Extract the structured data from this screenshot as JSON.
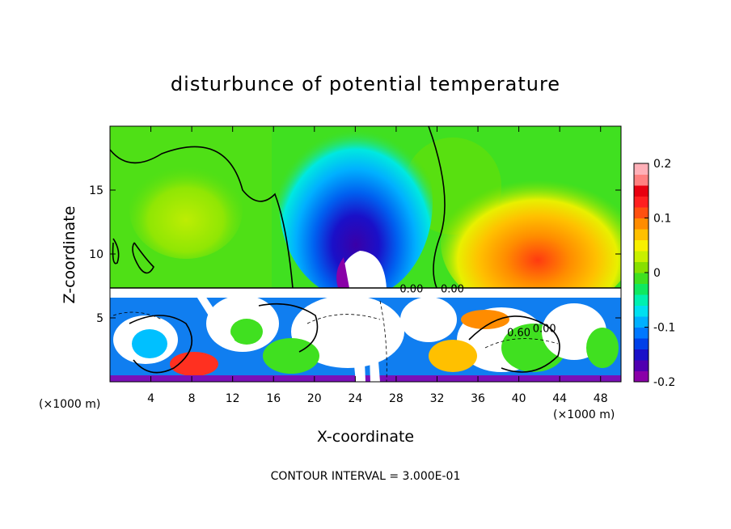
{
  "chart_data": {
    "type": "heatmap",
    "title": "disturbunce of potential temperature",
    "xlabel": "X-coordinate",
    "ylabel": "Z-coordinate",
    "x_unit_left": "(×1000 m)",
    "x_unit_right": "(×1000 m)",
    "footer": "CONTOUR INTERVAL = 3.000E-01",
    "xlim": [
      0,
      50
    ],
    "ylim": [
      0,
      20
    ],
    "x_ticks": [
      {
        "v": 4,
        "label": "4"
      },
      {
        "v": 8,
        "label": "8"
      },
      {
        "v": 12,
        "label": "12"
      },
      {
        "v": 16,
        "label": "16"
      },
      {
        "v": 20,
        "label": "20"
      },
      {
        "v": 24,
        "label": "24"
      },
      {
        "v": 28,
        "label": "28"
      },
      {
        "v": 32,
        "label": "32"
      },
      {
        "v": 36,
        "label": "36"
      },
      {
        "v": 40,
        "label": "40"
      },
      {
        "v": 44,
        "label": "44"
      },
      {
        "v": 48,
        "label": "48"
      }
    ],
    "y_ticks": [
      {
        "v": 5,
        "label": "5"
      },
      {
        "v": 10,
        "label": "10"
      },
      {
        "v": 15,
        "label": "15"
      }
    ],
    "colorbar": {
      "range": [
        -0.2,
        0.2
      ],
      "ticks": [
        {
          "v": 0.2,
          "label": "0.2"
        },
        {
          "v": 0.1,
          "label": "0.1"
        },
        {
          "v": 0,
          "label": "0"
        },
        {
          "v": -0.1,
          "label": "-0.1"
        },
        {
          "v": -0.2,
          "label": "-0.2"
        }
      ],
      "colors": [
        "#8a00a8",
        "#5000b0",
        "#1a10c8",
        "#0040e8",
        "#0078ff",
        "#00b0ff",
        "#00e0f0",
        "#00f0b0",
        "#10e860",
        "#40e020",
        "#88e000",
        "#c8f000",
        "#f8f000",
        "#ffc000",
        "#ff8c00",
        "#ff5010",
        "#ff2020",
        "#e80010",
        "#ff8080",
        "#ffb0b8"
      ]
    },
    "contour_labels": [
      {
        "x": 33.5,
        "y": 7.3,
        "text": "0.00"
      },
      {
        "x": 29.5,
        "y": 7.3,
        "text": "0.00"
      },
      {
        "x": 42.5,
        "y": 4.2,
        "text": "0.00"
      },
      {
        "x": 40.0,
        "y": 3.9,
        "text": "0.60"
      }
    ],
    "fields": {
      "upper_green_background": 0.0,
      "blue_plume_center": {
        "x": 25,
        "z": 11,
        "value": -0.2
      },
      "warm_anomaly_center": {
        "x": 42,
        "z": 11,
        "value": 0.12
      },
      "boundary_layer_top_z": 7.3
    }
  }
}
